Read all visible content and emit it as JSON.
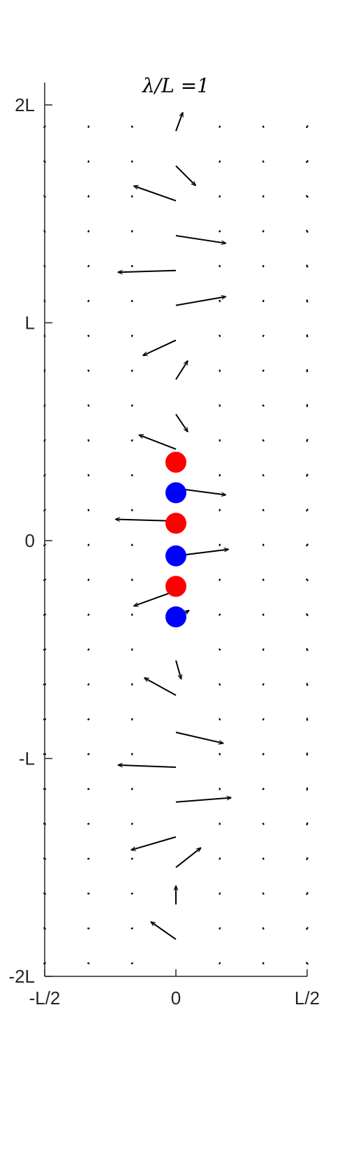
{
  "chart_data": {
    "type": "quiver",
    "title": "λ/L =1",
    "xlabel": "",
    "ylabel": "",
    "xlim": [
      -0.5,
      0.5
    ],
    "ylim": [
      -2,
      2
    ],
    "grid": false,
    "legend": "none",
    "x_ticks": [
      {
        "value": -0.5,
        "label": "-L/2"
      },
      {
        "value": 0,
        "label": "0"
      },
      {
        "value": 0.5,
        "label": "L/2"
      }
    ],
    "y_ticks": [
      {
        "value": -2,
        "label": "-2L"
      },
      {
        "value": -1,
        "label": "-L"
      },
      {
        "value": 0,
        "label": "0"
      },
      {
        "value": 1,
        "label": "L"
      },
      {
        "value": 2,
        "label": "2L"
      }
    ],
    "arrows": [
      {
        "x": 0,
        "y": 1.88,
        "u": 0.026,
        "v": 0.085
      },
      {
        "x": 0,
        "y": 1.72,
        "u": 0.075,
        "v": -0.09
      },
      {
        "x": 0,
        "y": 1.56,
        "u": -0.16,
        "v": 0.068
      },
      {
        "x": 0,
        "y": 1.4,
        "u": 0.19,
        "v": -0.035
      },
      {
        "x": 0,
        "y": 1.24,
        "u": -0.22,
        "v": -0.008
      },
      {
        "x": 0,
        "y": 1.08,
        "u": 0.19,
        "v": 0.04
      },
      {
        "x": 0,
        "y": 0.92,
        "u": -0.125,
        "v": -0.07
      },
      {
        "x": 0,
        "y": 0.74,
        "u": 0.045,
        "v": 0.085
      },
      {
        "x": 0,
        "y": 0.58,
        "u": 0.045,
        "v": -0.08
      },
      {
        "x": 0,
        "y": 0.42,
        "u": -0.14,
        "v": 0.065
      },
      {
        "x": 0,
        "y": 0.24,
        "u": 0.19,
        "v": -0.03
      },
      {
        "x": 0,
        "y": 0.09,
        "u": -0.23,
        "v": 0.008
      },
      {
        "x": 0,
        "y": -0.07,
        "u": 0.2,
        "v": 0.03
      },
      {
        "x": 0,
        "y": -0.23,
        "u": -0.16,
        "v": -0.07
      },
      {
        "x": 0,
        "y": -0.36,
        "u": 0.05,
        "v": 0.04
      },
      {
        "x": 0,
        "y": -0.55,
        "u": 0.02,
        "v": -0.085
      },
      {
        "x": 0,
        "y": -0.71,
        "u": -0.12,
        "v": 0.08
      },
      {
        "x": 0,
        "y": -0.88,
        "u": 0.18,
        "v": -0.05
      },
      {
        "x": 0,
        "y": -1.04,
        "u": -0.22,
        "v": 0.01
      },
      {
        "x": 0,
        "y": -1.2,
        "u": 0.21,
        "v": 0.02
      },
      {
        "x": 0,
        "y": -1.36,
        "u": -0.17,
        "v": -0.06
      },
      {
        "x": 0,
        "y": -1.5,
        "u": 0.095,
        "v": 0.09
      },
      {
        "x": 0,
        "y": -1.67,
        "u": 0.0,
        "v": 0.085
      },
      {
        "x": 0,
        "y": -1.83,
        "u": -0.095,
        "v": 0.08
      }
    ],
    "point_charges": [
      {
        "x": 0,
        "y": 0.36,
        "sign": "positive"
      },
      {
        "x": 0,
        "y": 0.22,
        "sign": "negative"
      },
      {
        "x": 0,
        "y": 0.08,
        "sign": "positive"
      },
      {
        "x": 0,
        "y": -0.07,
        "sign": "negative"
      },
      {
        "x": 0,
        "y": -0.21,
        "sign": "positive"
      },
      {
        "x": 0,
        "y": -0.35,
        "sign": "negative"
      }
    ],
    "grid_columns": [
      -0.5,
      -0.333,
      -0.167,
      0.167,
      0.333,
      0.5
    ],
    "grid_rows_step": 0.16
  },
  "colors": {
    "positive": "#ff0000",
    "negative": "#0000ff",
    "arrow": "#000000",
    "axis": "#262626"
  }
}
